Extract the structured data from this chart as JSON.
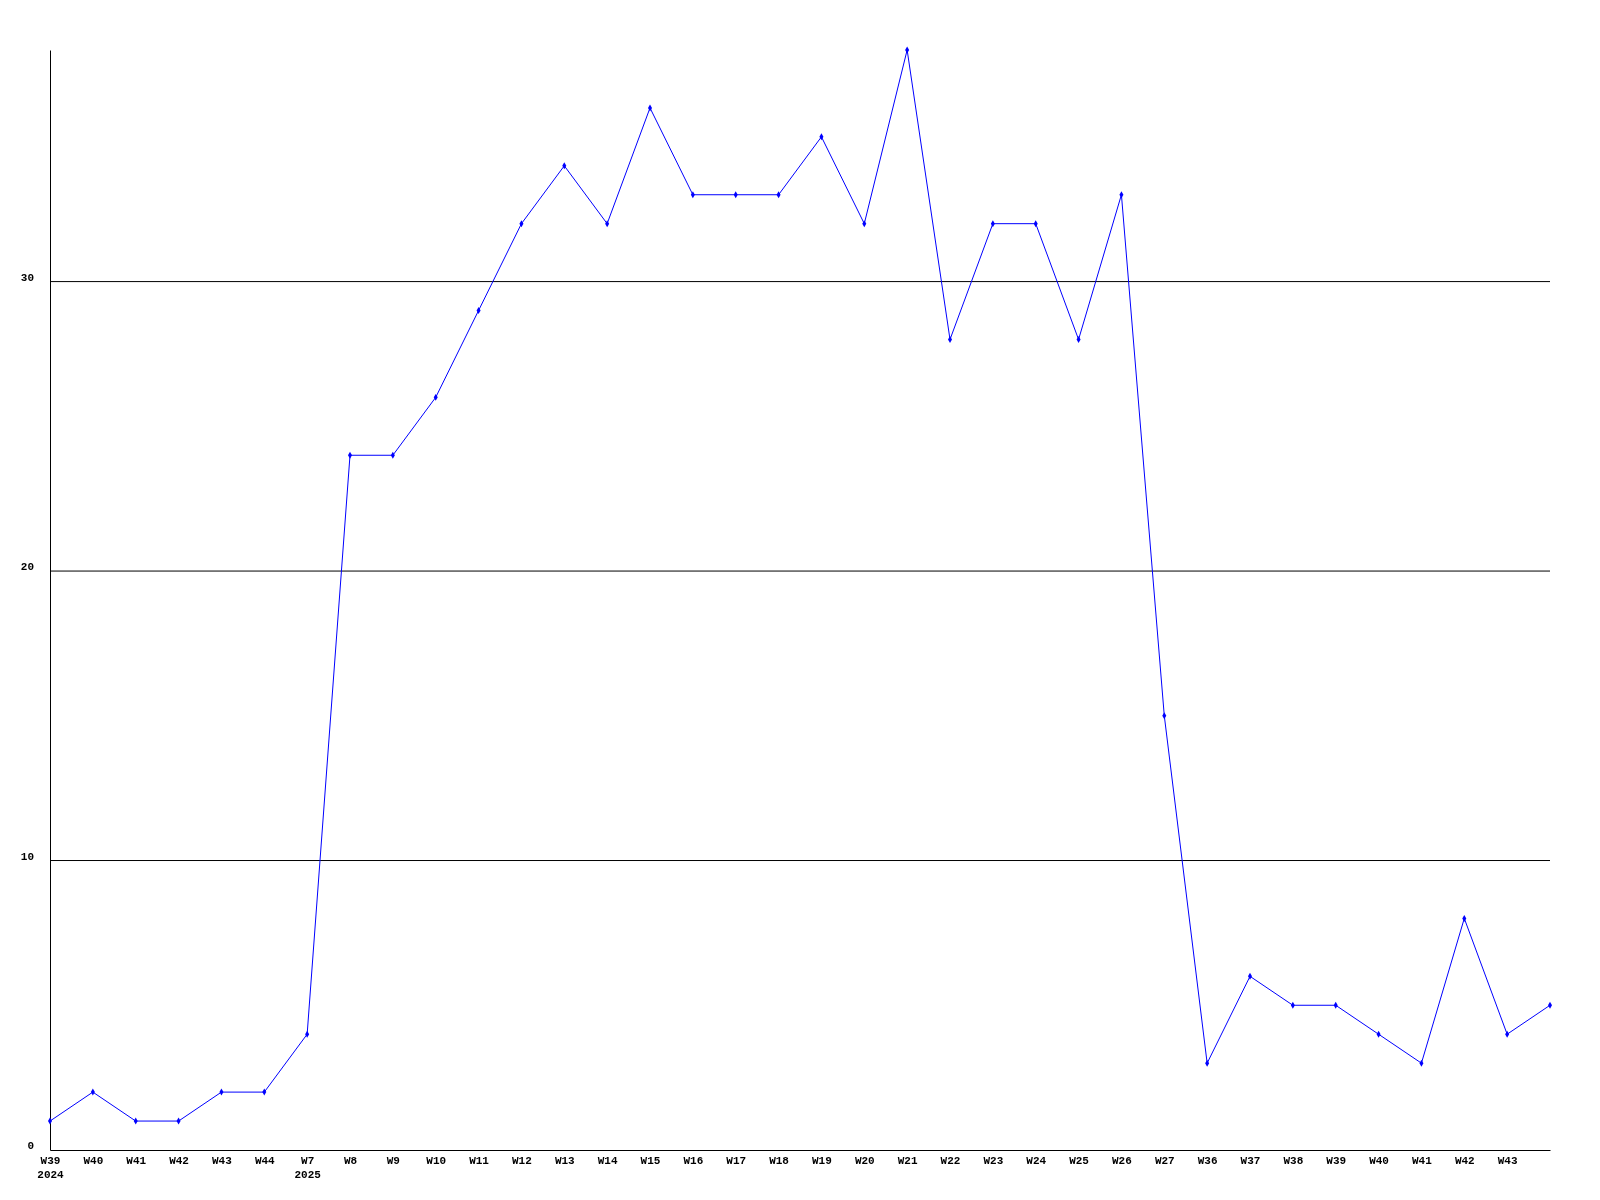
{
  "chart_data": {
    "type": "line",
    "categories": [
      "W39\n2024",
      "W40",
      "W41",
      "W42",
      "W43",
      "W44",
      "W7\n2025",
      "W8",
      "W9",
      "W10",
      "W11",
      "W12",
      "W13",
      "W14",
      "W15",
      "W16",
      "W17",
      "W18",
      "W19",
      "W20",
      "W21",
      "W22",
      "W23",
      "W24",
      "W25",
      "W26",
      "W27",
      "W36",
      "W37",
      "W38",
      "W39",
      "W40",
      "W41",
      "W42",
      "W43",
      null
    ],
    "series": [
      {
        "color": "#0000ff",
        "values": [
          1,
          2,
          1,
          1,
          2,
          2,
          4,
          24,
          24,
          26,
          29,
          32,
          34,
          32,
          36,
          33,
          33,
          33,
          35,
          32,
          38,
          28,
          32,
          32,
          28,
          33,
          15,
          3,
          6,
          5,
          5,
          4,
          3,
          8,
          4,
          5
        ]
      }
    ],
    "ylim": [
      0,
      38
    ],
    "yticks": [
      0,
      10,
      20,
      30
    ],
    "grid": "y",
    "marker": "diamond",
    "line_style": "solid"
  }
}
